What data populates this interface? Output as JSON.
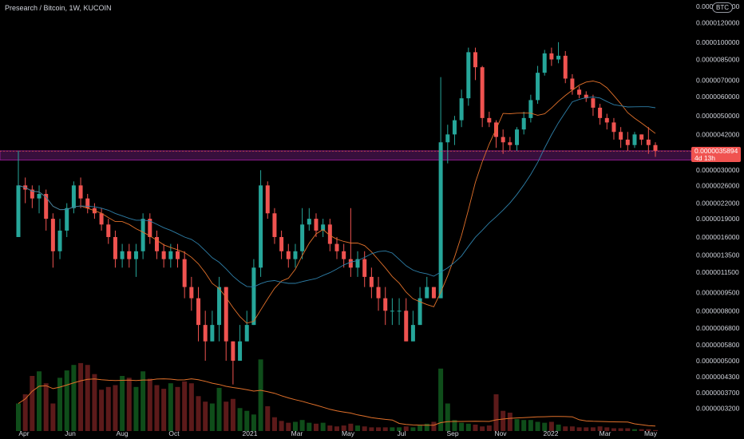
{
  "header": {
    "title": "Presearch / Bitcoin, 1W, KUCOIN",
    "currency_badge": "BTC"
  },
  "price_axis": {
    "labels": [
      "0.0000140000",
      "0.0000120000",
      "0.0000100000",
      "0.0000085000",
      "0.0000070000",
      "0.0000060000",
      "0.0000050000",
      "0.0000042000",
      "0.0000030000",
      "0.0000026000",
      "0.0000022000",
      "0.0000019000",
      "0.0000016000",
      "0.0000013500",
      "0.0000011500",
      "0.0000009500",
      "0.0000008000",
      "0.0000006800",
      "0.0000005800",
      "0.0000005000",
      "0.0000004300",
      "0.0000003700",
      "0.0000003200"
    ]
  },
  "time_axis": {
    "labels": [
      "Apr",
      "Jun",
      "Aug",
      "Oct",
      "2021",
      "Mar",
      "May",
      "Jul",
      "Sep",
      "Nov",
      "2022",
      "Mar",
      "May"
    ]
  },
  "current": {
    "price": "0.0000035894",
    "countdown": "4d 13h"
  },
  "colors": {
    "up": "#26a69a",
    "down": "#ef5350",
    "ma_fast": "#e0702a",
    "ma_slow": "#2e7fa8",
    "zone": "#6a1b6a",
    "background": "#000000"
  },
  "chart_data": {
    "type": "candlestick",
    "title": "Presearch / Bitcoin, 1W, KUCOIN",
    "scale": "log",
    "ylim": [
      3e-07,
      1.4e-05
    ],
    "xlabel": "",
    "ylabel": "",
    "grid": false,
    "timeframe": "1W",
    "highlight_zone": [
      3.3e-06,
      3.6e-06
    ],
    "candles": [
      [
        1.6e-06,
        2.6e-06,
        1.6e-06,
        3.6e-06
      ],
      [
        2.6e-06,
        2.5e-06,
        2.2e-06,
        2.8e-06
      ],
      [
        2.5e-06,
        2.3e-06,
        2.1e-06,
        2.6e-06
      ],
      [
        2.3e-06,
        2.4e-06,
        2e-06,
        2.6e-06
      ],
      [
        2.4e-06,
        1.9e-06,
        1.7e-06,
        2.5e-06
      ],
      [
        1.9e-06,
        1.4e-06,
        1.2e-06,
        2e-06
      ],
      [
        1.4e-06,
        1.7e-06,
        1.3e-06,
        1.9e-06
      ],
      [
        1.7e-06,
        2.1e-06,
        1.6e-06,
        2.2e-06
      ],
      [
        2.1e-06,
        2.6e-06,
        2e-06,
        2.7e-06
      ],
      [
        2.6e-06,
        2.3e-06,
        2.1e-06,
        2.8e-06
      ],
      [
        2.3e-06,
        2.1e-06,
        2e-06,
        2.4e-06
      ],
      [
        2.1e-06,
        2e-06,
        1.9e-06,
        2.2e-06
      ],
      [
        2e-06,
        1.8e-06,
        1.7e-06,
        2.1e-06
      ],
      [
        1.8e-06,
        1.6e-06,
        1.5e-06,
        1.9e-06
      ],
      [
        1.6e-06,
        1.3e-06,
        1.2e-06,
        1.7e-06
      ],
      [
        1.3e-06,
        1.4e-06,
        1.2e-06,
        1.5e-06
      ],
      [
        1.4e-06,
        1.3e-06,
        1.2e-06,
        1.5e-06
      ],
      [
        1.3e-06,
        1.4e-06,
        1.1e-06,
        1.5e-06
      ],
      [
        1.4e-06,
        1.9e-06,
        1.3e-06,
        2e-06
      ],
      [
        1.9e-06,
        1.6e-06,
        1.5e-06,
        2e-06
      ],
      [
        1.6e-06,
        1.4e-06,
        1.3e-06,
        1.7e-06
      ],
      [
        1.4e-06,
        1.3e-06,
        1.2e-06,
        1.5e-06
      ],
      [
        1.3e-06,
        1.4e-06,
        1.2e-06,
        1.5e-06
      ],
      [
        1.4e-06,
        1.3e-06,
        1.2e-06,
        1.5e-06
      ],
      [
        1.3e-06,
        1e-06,
        9e-07,
        1.4e-06
      ],
      [
        1e-06,
        9e-07,
        8e-07,
        1.1e-06
      ],
      [
        9e-07,
        7e-07,
        6e-07,
        1e-06
      ],
      [
        7e-07,
        6e-07,
        5e-07,
        8e-07
      ],
      [
        6e-07,
        7e-07,
        6e-07,
        8e-07
      ],
      [
        7e-07,
        1e-06,
        6e-07,
        1.1e-06
      ],
      [
        1e-06,
        6e-07,
        5e-07,
        1e-06
      ],
      [
        6e-07,
        5e-07,
        4e-07,
        6e-07
      ],
      [
        5e-07,
        6e-07,
        5e-07,
        7e-07
      ],
      [
        6e-07,
        7e-07,
        6e-07,
        8e-07
      ],
      [
        7e-07,
        1.2e-06,
        7e-07,
        1.3e-06
      ],
      [
        1.2e-06,
        2.6e-06,
        1.1e-06,
        3e-06
      ],
      [
        2.6e-06,
        2e-06,
        1.9e-06,
        2.7e-06
      ],
      [
        2e-06,
        1.6e-06,
        1.5e-06,
        2.1e-06
      ],
      [
        1.6e-06,
        1.4e-06,
        1.3e-06,
        1.7e-06
      ],
      [
        1.4e-06,
        1.3e-06,
        1.2e-06,
        1.5e-06
      ],
      [
        1.3e-06,
        1.4e-06,
        1.2e-06,
        1.5e-06
      ],
      [
        1.4e-06,
        1.8e-06,
        1.3e-06,
        2.1e-06
      ],
      [
        1.8e-06,
        1.9e-06,
        1.7e-06,
        2.1e-06
      ],
      [
        1.9e-06,
        1.7e-06,
        1.6e-06,
        2e-06
      ],
      [
        1.7e-06,
        1.8e-06,
        1.6e-06,
        1.9e-06
      ],
      [
        1.8e-06,
        1.5e-06,
        1.4e-06,
        1.9e-06
      ],
      [
        1.5e-06,
        1.4e-06,
        1.3e-06,
        1.6e-06
      ],
      [
        1.4e-06,
        1.3e-06,
        1.2e-06,
        1.5e-06
      ],
      [
        1.3e-06,
        1.2e-06,
        1.1e-06,
        2.1e-06
      ],
      [
        1.2e-06,
        1.3e-06,
        1.1e-06,
        1.4e-06
      ],
      [
        1.3e-06,
        1.1e-06,
        1e-06,
        1.4e-06
      ],
      [
        1.1e-06,
        1e-06,
        9e-07,
        1.2e-06
      ],
      [
        1e-06,
        9e-07,
        8e-07,
        1.1e-06
      ],
      [
        9e-07,
        8e-07,
        7e-07,
        1e-06
      ],
      [
        8e-07,
        8e-07,
        7e-07,
        9e-07
      ],
      [
        8e-07,
        8e-07,
        7e-07,
        9e-07
      ],
      [
        8e-07,
        6e-07,
        6e-07,
        9e-07
      ],
      [
        6e-07,
        7e-07,
        6e-07,
        8e-07
      ],
      [
        7e-07,
        9e-07,
        7e-07,
        1e-06
      ],
      [
        9e-07,
        1e-06,
        9e-07,
        1.1e-06
      ],
      [
        1e-06,
        9e-07,
        9e-07,
        1e-06
      ],
      [
        9e-07,
        3.9e-06,
        9e-07,
        7.2e-06
      ],
      [
        3.9e-06,
        4.2e-06,
        3.2e-06,
        4.6e-06
      ],
      [
        4.2e-06,
        4.8e-06,
        3.8e-06,
        5e-06
      ],
      [
        4.8e-06,
        5.9e-06,
        4.5e-06,
        6.4e-06
      ],
      [
        5.9e-06,
        9.1e-06,
        5.5e-06,
        9.5e-06
      ],
      [
        9.1e-06,
        7.9e-06,
        7e-06,
        9.5e-06
      ],
      [
        7.9e-06,
        4.9e-06,
        4.5e-06,
        8e-06
      ],
      [
        4.9e-06,
        4.7e-06,
        4.5e-06,
        5.2e-06
      ],
      [
        4.7e-06,
        4.1e-06,
        3.7e-06,
        4.8e-06
      ],
      [
        4.1e-06,
        3.9e-06,
        3.5e-06,
        4.4e-06
      ],
      [
        3.9e-06,
        3.8e-06,
        3.6e-06,
        4.1e-06
      ],
      [
        3.8e-06,
        4.4e-06,
        3.6e-06,
        4.5e-06
      ],
      [
        4.4e-06,
        4.9e-06,
        4.2e-06,
        5.2e-06
      ],
      [
        4.9e-06,
        5.8e-06,
        4.7e-06,
        6.1e-06
      ],
      [
        5.8e-06,
        7.5e-06,
        5.6e-06,
        8e-06
      ],
      [
        7.5e-06,
        9e-06,
        7.3e-06,
        9.3e-06
      ],
      [
        9e-06,
        8.5e-06,
        8e-06,
        9.5e-06
      ],
      [
        8.5e-06,
        8.8e-06,
        8.2e-06,
        1e-05
      ],
      [
        8.8e-06,
        7.1e-06,
        6.8e-06,
        9.2e-06
      ],
      [
        7.1e-06,
        6.4e-06,
        6.1e-06,
        7.4e-06
      ],
      [
        6.4e-06,
        6.1e-06,
        5.9e-06,
        6.6e-06
      ],
      [
        6.1e-06,
        5.9e-06,
        5.7e-06,
        6.3e-06
      ],
      [
        5.9e-06,
        5.4e-06,
        5e-06,
        6.1e-06
      ],
      [
        5.4e-06,
        4.9e-06,
        4.6e-06,
        5.6e-06
      ],
      [
        4.9e-06,
        4.7e-06,
        4.4e-06,
        5.1e-06
      ],
      [
        4.7e-06,
        4.3e-06,
        4e-06,
        4.9e-06
      ],
      [
        4.3e-06,
        4e-06,
        3.7e-06,
        4.5e-06
      ],
      [
        4e-06,
        3.8e-06,
        3.6e-06,
        4.3e-06
      ],
      [
        3.8e-06,
        4.2e-06,
        3.7e-06,
        4.3e-06
      ],
      [
        4.2e-06,
        4e-06,
        3.8e-06,
        4.2e-06
      ],
      [
        4e-06,
        3.8e-06,
        3.5e-06,
        4.5e-06
      ],
      [
        3.8e-06,
        3.6e-06,
        3.4e-06,
        3.9e-06
      ]
    ],
    "volume_relative": [
      0.3,
      0.4,
      0.6,
      0.65,
      0.52,
      0.3,
      0.58,
      0.66,
      0.72,
      0.74,
      0.72,
      0.62,
      0.45,
      0.48,
      0.5,
      0.6,
      0.58,
      0.48,
      0.65,
      0.57,
      0.5,
      0.46,
      0.52,
      0.48,
      0.54,
      0.52,
      0.38,
      0.32,
      0.3,
      0.47,
      0.32,
      0.35,
      0.25,
      0.22,
      0.18,
      0.78,
      0.27,
      0.15,
      0.11,
      0.09,
      0.1,
      0.12,
      0.09,
      0.08,
      0.09,
      0.06,
      0.05,
      0.06,
      0.08,
      0.06,
      0.05,
      0.04,
      0.04,
      0.04,
      0.04,
      0.04,
      0.05,
      0.04,
      0.06,
      0.08,
      0.1,
      0.68,
      0.3,
      0.12,
      0.09,
      0.08,
      0.07,
      0.05,
      0.06,
      0.4,
      0.22,
      0.2,
      0.13,
      0.12,
      0.12,
      0.1,
      0.09,
      0.1,
      0.07,
      0.05,
      0.05,
      0.04,
      0.04,
      0.04,
      0.05,
      0.04,
      0.03,
      0.03,
      0.03,
      0.02,
      0.02,
      0.02,
      0.01
    ],
    "moving_averages": [
      "fast",
      "slow"
    ]
  }
}
